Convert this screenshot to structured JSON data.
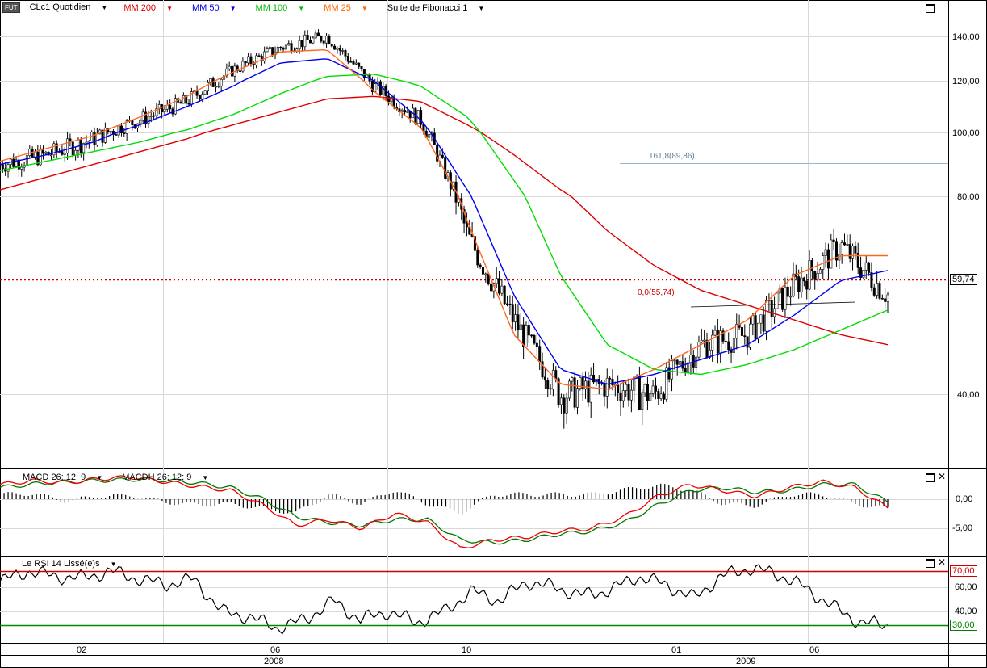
{
  "main_legend": {
    "badge": "FUT",
    "symbol": "CLc1 Quotidien",
    "items": [
      {
        "label": "MM 200",
        "color": "#dd0000"
      },
      {
        "label": "MM 50",
        "color": "#0000dd"
      },
      {
        "label": "MM 100",
        "color": "#00cc00"
      },
      {
        "label": "MM 25",
        "color": "#ff6600"
      },
      {
        "label": "Suite de Fibonacci 1",
        "color": "#000000"
      }
    ]
  },
  "macd_legend": {
    "items": [
      {
        "label": "MACD  26; 12; 9",
        "color": "#000000"
      },
      {
        "label": "MACDH 26; 12; 9",
        "color": "#000000"
      }
    ]
  },
  "rsi_legend": {
    "label": "Le RSI 14 Lissé(e)s"
  },
  "last_price": "59,74",
  "fib_labels": {
    "upper": "161,8(89,86)",
    "lower": "0,0(55,74)"
  },
  "price_axis": [
    "140,00",
    "120,00",
    "100,00",
    "80,00",
    "40,00"
  ],
  "macd_axis": [
    "0,00",
    "-5,00"
  ],
  "rsi_axis": [
    "60,00",
    "40,00"
  ],
  "rsi_levels": {
    "upper": "70,00",
    "lower": "30,00"
  },
  "time_axis": {
    "months": [
      "02",
      "06",
      "10",
      "01",
      "06"
    ],
    "years": [
      "2008",
      "2009"
    ]
  },
  "colors": {
    "ma200": "#dd0000",
    "ma50": "#0000ee",
    "ma100": "#00dd00",
    "ma25": "#ff6622",
    "macd": "#ee0000",
    "signal": "#007700",
    "rsi_upper": "#cc0000",
    "rsi_lower": "#008800",
    "fib": "#336699"
  },
  "chart_data": {
    "type": "line",
    "note_series": "daily candlestick crude oil futures with moving averages",
    "x": [
      "2007-12",
      "2008-01",
      "2008-02",
      "2008-03",
      "2008-04",
      "2008-05",
      "2008-06",
      "2008-07",
      "2008-08",
      "2008-09",
      "2008-10",
      "2008-11",
      "2008-12",
      "2009-01",
      "2009-02",
      "2009-03",
      "2009-04",
      "2009-05",
      "2009-06",
      "2009-07"
    ],
    "series": [
      {
        "name": "CLc1",
        "values": [
          90,
          93,
          98,
          105,
          112,
          125,
          135,
          140,
          118,
          105,
          72,
          55,
          40,
          42,
          40,
          50,
          52,
          62,
          70,
          60
        ]
      },
      {
        "name": "MM 200",
        "values": [
          82,
          86,
          90,
          94,
          98,
          103,
          108,
          113,
          114,
          112,
          103,
          93,
          82,
          73,
          66,
          61,
          58,
          55,
          52,
          50
        ]
      },
      {
        "name": "MM 100",
        "values": [
          88,
          91,
          94,
          97,
          101,
          107,
          115,
          122,
          123,
          118,
          106,
          85,
          64,
          50,
          45,
          44,
          46,
          49,
          53,
          57
        ]
      },
      {
        "name": "MM 50",
        "values": [
          90,
          93,
          97,
          103,
          110,
          118,
          128,
          130,
          120,
          105,
          82,
          60,
          45,
          42,
          44,
          47,
          50,
          56,
          63,
          65
        ]
      },
      {
        "name": "MM 25",
        "values": [
          91,
          95,
          99,
          106,
          114,
          124,
          133,
          134,
          116,
          102,
          75,
          52,
          42,
          41,
          45,
          50,
          55,
          64,
          68,
          68
        ]
      }
    ],
    "ylim": [
      30,
      150
    ],
    "reference_lines": [
      {
        "label": "161,8(89,86)",
        "value": 89.86
      },
      {
        "label": "0,0(55,74)",
        "value": 55.74
      }
    ],
    "last_value": 59.74,
    "subcharts": [
      {
        "name": "MACD",
        "ylim": [
          -9,
          4
        ],
        "ticks": [
          0,
          -5
        ]
      },
      {
        "name": "RSI",
        "ylim": [
          20,
          80
        ],
        "levels": [
          70,
          30
        ]
      }
    ]
  }
}
